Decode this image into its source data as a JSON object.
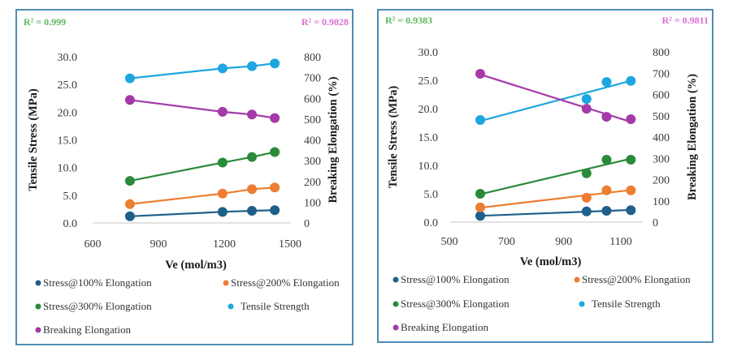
{
  "chart_data": [
    {
      "type": "line",
      "title": "",
      "xlabel": "Ve (mol/m3)",
      "ylabel": "Tensile Stress (MPa)",
      "y2label": "Breaking Elongation (%)",
      "xlim": [
        600,
        1500
      ],
      "xticks": [
        "600",
        "900",
        "1200",
        "1500"
      ],
      "ylim": [
        0,
        30
      ],
      "yticks": [
        "0.0",
        "5.0",
        "10.0",
        "15.0",
        "20.0",
        "25.0",
        "30.0"
      ],
      "y2lim": [
        0,
        800
      ],
      "y2ticks": [
        "0",
        "100",
        "200",
        "300",
        "400",
        "500",
        "600",
        "700",
        "800"
      ],
      "grid": false,
      "legend_position": "bottom",
      "line_style": "connect",
      "annotations": [
        {
          "text": "R² = 0.999",
          "color": "#5cb85c",
          "position": "top-left"
        },
        {
          "text": "R² = 0.9828",
          "color": "#d96fd6",
          "position": "top-right"
        }
      ],
      "x": [
        770,
        1192,
        1326,
        1430
      ],
      "series": [
        {
          "name": "Stress@100% Elongation",
          "axis": "left",
          "color": "#1f5f8b",
          "values": [
            1.2,
            2.0,
            2.2,
            2.3
          ]
        },
        {
          "name": "Stress@200% Elongation",
          "axis": "left",
          "color": "#ed7d31",
          "values": [
            3.4,
            5.3,
            6.1,
            6.4
          ]
        },
        {
          "name": "Stress@300% Elongation",
          "axis": "left",
          "color": "#2a8a3a",
          "values": [
            7.6,
            10.9,
            11.9,
            12.8
          ]
        },
        {
          "name": "Tensile Strength",
          "axis": "left",
          "color": "#1ea6e0",
          "values": [
            26.1,
            27.9,
            28.3,
            28.8
          ]
        },
        {
          "name": "Breaking Elongation",
          "axis": "right",
          "color": "#a33aa8",
          "values": [
            592,
            535,
            522,
            505
          ]
        }
      ]
    },
    {
      "type": "scatter",
      "title": "",
      "xlabel": "Ve (mol/m3)",
      "ylabel": "Tensile Stress (MPa)",
      "y2label": "Breaking Elongation (%)",
      "xlim": [
        500,
        1170
      ],
      "xticks": [
        "500",
        "700",
        "900",
        "1100"
      ],
      "ylim": [
        0,
        30
      ],
      "yticks": [
        "0.0",
        "5.0",
        "10.0",
        "15.0",
        "20.0",
        "25.0",
        "30.0"
      ],
      "y2lim": [
        0,
        800
      ],
      "y2ticks": [
        "0",
        "100",
        "200",
        "300",
        "400",
        "500",
        "600",
        "700",
        "800"
      ],
      "grid": false,
      "legend_position": "bottom",
      "line_style": "linear-trend",
      "annotations": [
        {
          "text": "R² = 0.9383",
          "color": "#5cb85c",
          "position": "top-left"
        },
        {
          "text": "R² = 0.9811",
          "color": "#d96fd6",
          "position": "top-right"
        }
      ],
      "x": [
        608,
        980,
        1050,
        1135
      ],
      "series": [
        {
          "name": "Stress@100% Elongation",
          "axis": "left",
          "color": "#1f5f8b",
          "values": [
            1.1,
            1.9,
            2.0,
            2.1
          ]
        },
        {
          "name": "Stress@200% Elongation",
          "axis": "left",
          "color": "#ed7d31",
          "values": [
            2.6,
            4.3,
            5.6,
            5.6
          ]
        },
        {
          "name": "Stress@300% Elongation",
          "axis": "left",
          "color": "#2a8a3a",
          "values": [
            5.0,
            8.6,
            11.0,
            11.0
          ]
        },
        {
          "name": "Tensile Strength",
          "axis": "left",
          "color": "#1ea6e0",
          "values": [
            18.0,
            21.7,
            24.7,
            24.9
          ]
        },
        {
          "name": "Breaking Elongation",
          "axis": "right",
          "color": "#a33aa8",
          "values": [
            697,
            533,
            495,
            484
          ]
        }
      ]
    }
  ]
}
